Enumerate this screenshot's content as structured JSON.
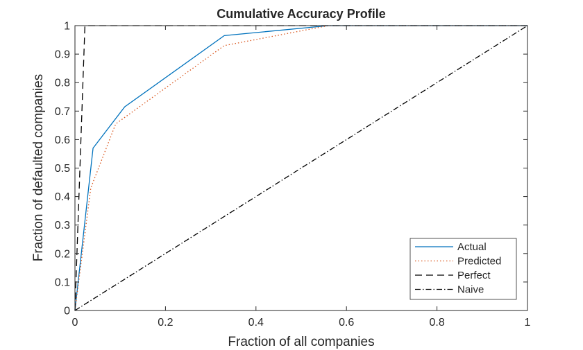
{
  "chart_data": {
    "type": "line",
    "title": "Cumulative Accuracy Profile",
    "xlabel": "Fraction of all companies",
    "ylabel": "Fraction of defaulted companies",
    "xlim": [
      0,
      1
    ],
    "ylim": [
      0,
      1
    ],
    "xticks": [
      0,
      0.2,
      0.4,
      0.6,
      0.8,
      1
    ],
    "xtick_labels": [
      "0",
      "0.2",
      "0.4",
      "0.6",
      "0.8",
      "1"
    ],
    "yticks": [
      0,
      0.1,
      0.2,
      0.3,
      0.4,
      0.5,
      0.6,
      0.7,
      0.8,
      0.9,
      1
    ],
    "ytick_labels": [
      "0",
      "0.1",
      "0.2",
      "0.3",
      "0.4",
      "0.5",
      "0.6",
      "0.7",
      "0.8",
      "0.9",
      "1"
    ],
    "grid": false,
    "legend_position": "bottom-right",
    "series": [
      {
        "name": "Actual",
        "color": "#0072BD",
        "style": "solid",
        "x": [
          0,
          0.04,
          0.11,
          0.33,
          0.56,
          1
        ],
        "y": [
          0,
          0.57,
          0.715,
          0.965,
          1,
          1
        ]
      },
      {
        "name": "Predicted",
        "color": "#D95319",
        "style": "dotted",
        "x": [
          0,
          0.035,
          0.09,
          0.33,
          0.56,
          1
        ],
        "y": [
          0,
          0.43,
          0.655,
          0.93,
          1,
          1
        ]
      },
      {
        "name": "Perfect",
        "color": "#000000",
        "style": "dashed",
        "x": [
          0,
          0.022,
          1
        ],
        "y": [
          0,
          1,
          1
        ]
      },
      {
        "name": "Naive",
        "color": "#000000",
        "style": "dashdot",
        "x": [
          0,
          1
        ],
        "y": [
          0,
          1
        ]
      }
    ]
  }
}
